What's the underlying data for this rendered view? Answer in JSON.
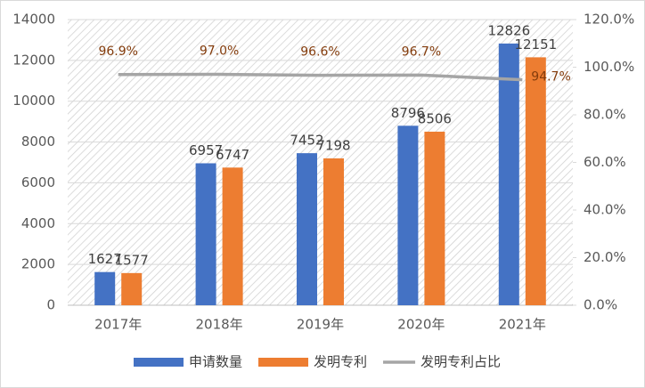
{
  "chart_data": {
    "type": "bar-line",
    "categories": [
      "2017年",
      "2018年",
      "2019年",
      "2020年",
      "2021年"
    ],
    "series": [
      {
        "name": "申请数量",
        "type": "bar",
        "color": "#4472c4",
        "values": [
          1627,
          6957,
          7452,
          8796,
          12826
        ]
      },
      {
        "name": "发明专利",
        "type": "bar",
        "color": "#ed7d31",
        "values": [
          1577,
          6747,
          7198,
          8506,
          12151
        ]
      },
      {
        "name": "发明专利占比",
        "type": "line",
        "axis": "y2",
        "color": "#a5a5a5",
        "values": [
          96.9,
          97.0,
          96.6,
          96.7,
          94.7
        ],
        "value_labels": [
          "96.9%",
          "97.0%",
          "96.6%",
          "96.7%",
          "94.7%"
        ]
      }
    ],
    "ylim": [
      0,
      14000
    ],
    "yticks": [
      0,
      2000,
      4000,
      6000,
      8000,
      10000,
      12000,
      14000
    ],
    "y2lim": [
      0,
      120
    ],
    "y2ticks": [
      {
        "value": 0,
        "label": "0.0%"
      },
      {
        "value": 20,
        "label": "20.0%"
      },
      {
        "value": 40,
        "label": "40.0%"
      },
      {
        "value": 60,
        "label": "60.0%"
      },
      {
        "value": 80,
        "label": "80.0%"
      },
      {
        "value": 100,
        "label": "100.0%"
      },
      {
        "value": 120,
        "label": "120.0%"
      }
    ],
    "grid": true,
    "legend": "bottom"
  }
}
